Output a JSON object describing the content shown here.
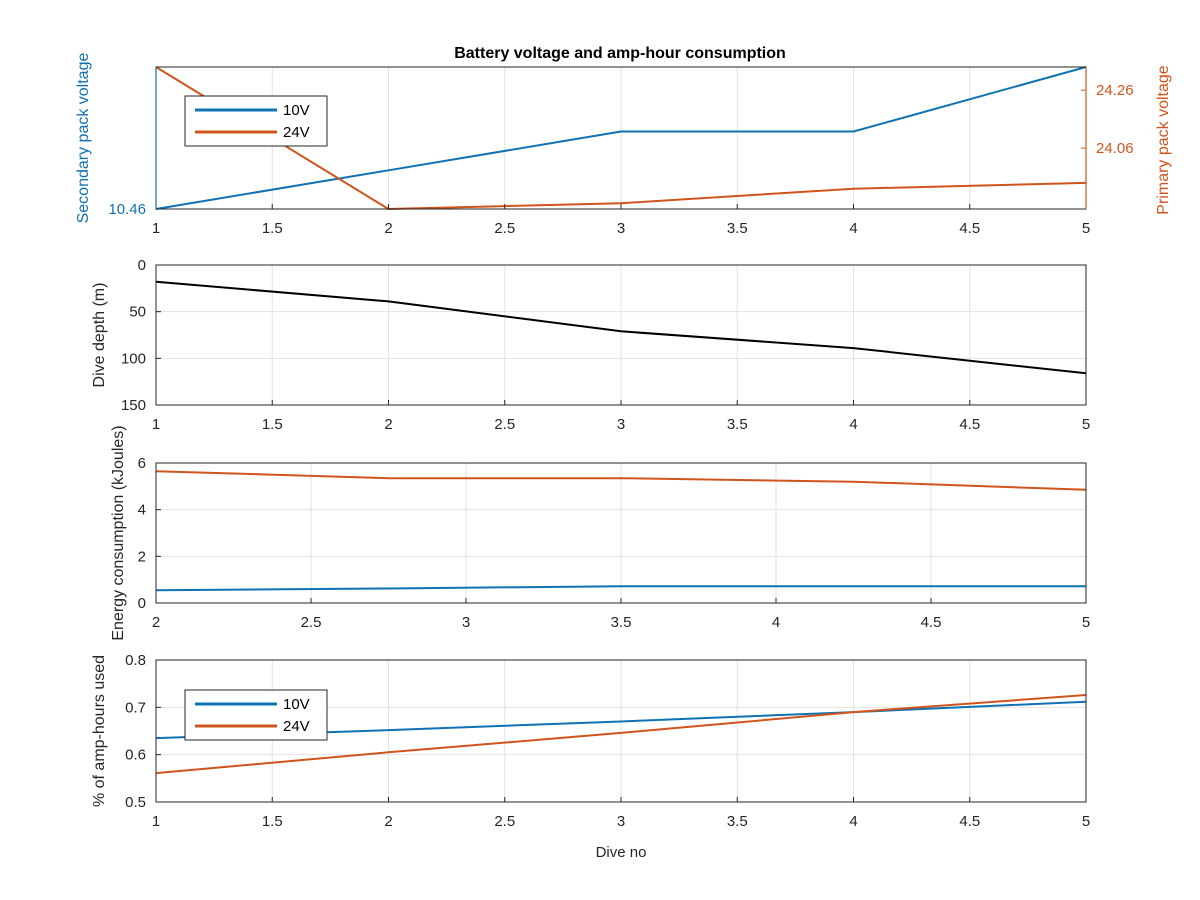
{
  "title": "Battery voltage and amp-hour consumption",
  "colors": {
    "blue": "#0f72b3",
    "orange": "#d0541c",
    "black": "#000000",
    "grid": "#e2e2e2",
    "axis": "#262626"
  },
  "chart_data": [
    {
      "type": "line",
      "title": "Battery voltage and amp-hour consumption",
      "xlabel": "",
      "ylabel_left": "Secondary pack voltage",
      "ylabel_right": "Primary pack voltage",
      "x": [
        1,
        2,
        3,
        4,
        5
      ],
      "xlim": [
        1,
        5
      ],
      "xticks": [
        "1",
        "1.5",
        "2",
        "2.5",
        "3",
        "3.5",
        "4",
        "4.5",
        "5"
      ],
      "yticks_left": [
        "10.46"
      ],
      "yticks_right": [
        "24.06",
        "24.26"
      ],
      "grid": true,
      "legend": "top-left",
      "series": [
        {
          "name": "10V",
          "axis": "left",
          "values": [
            10.46,
            10.58,
            10.7,
            10.7,
            10.9
          ],
          "ylim": [
            10.46,
            10.9
          ]
        },
        {
          "name": "24V",
          "axis": "right",
          "values": [
            24.34,
            23.85,
            23.87,
            23.92,
            23.94
          ],
          "ylim": [
            23.85,
            24.34
          ]
        }
      ]
    },
    {
      "type": "line",
      "xlabel": "",
      "ylabel": "Dive depth (m)",
      "x": [
        1,
        2,
        3,
        4,
        5
      ],
      "xlim": [
        1,
        5
      ],
      "ylim": [
        0,
        150
      ],
      "y_reversed": true,
      "xticks": [
        "1",
        "1.5",
        "2",
        "2.5",
        "3",
        "3.5",
        "4",
        "4.5",
        "5"
      ],
      "yticks": [
        "0",
        "50",
        "100",
        "150"
      ],
      "grid": true,
      "series": [
        {
          "values": [
            18,
            39,
            71,
            89,
            116
          ]
        }
      ]
    },
    {
      "type": "line",
      "xlabel": "",
      "ylabel": "Energy consumption (kJoules)",
      "x": [
        2,
        2.75,
        3.5,
        4.25,
        5
      ],
      "xlim": [
        2,
        5
      ],
      "ylim": [
        0,
        6
      ],
      "xticks": [
        "2",
        "2.5",
        "3",
        "3.5",
        "4",
        "4.5",
        "5"
      ],
      "yticks": [
        "0",
        "2",
        "4",
        "6"
      ],
      "grid": true,
      "series": [
        {
          "name": "10V",
          "values": [
            0.55,
            0.62,
            0.72,
            0.72,
            0.72
          ]
        },
        {
          "name": "24V",
          "values": [
            5.65,
            5.35,
            5.35,
            5.2,
            4.85
          ]
        }
      ]
    },
    {
      "type": "line",
      "xlabel": "Dive no",
      "ylabel": "% of amp-hours used",
      "x": [
        1,
        2,
        3,
        4,
        5
      ],
      "xlim": [
        1,
        5
      ],
      "ylim": [
        0.5,
        0.8
      ],
      "xticks": [
        "1",
        "1.5",
        "2",
        "2.5",
        "3",
        "3.5",
        "4",
        "4.5",
        "5"
      ],
      "yticks": [
        "0.5",
        "0.6",
        "0.7",
        "0.8"
      ],
      "grid": true,
      "legend": "top-left",
      "series": [
        {
          "name": "10V",
          "values": [
            0.635,
            0.652,
            0.67,
            0.69,
            0.712
          ]
        },
        {
          "name": "24V",
          "values": [
            0.561,
            0.605,
            0.646,
            0.69,
            0.726
          ]
        }
      ]
    }
  ]
}
